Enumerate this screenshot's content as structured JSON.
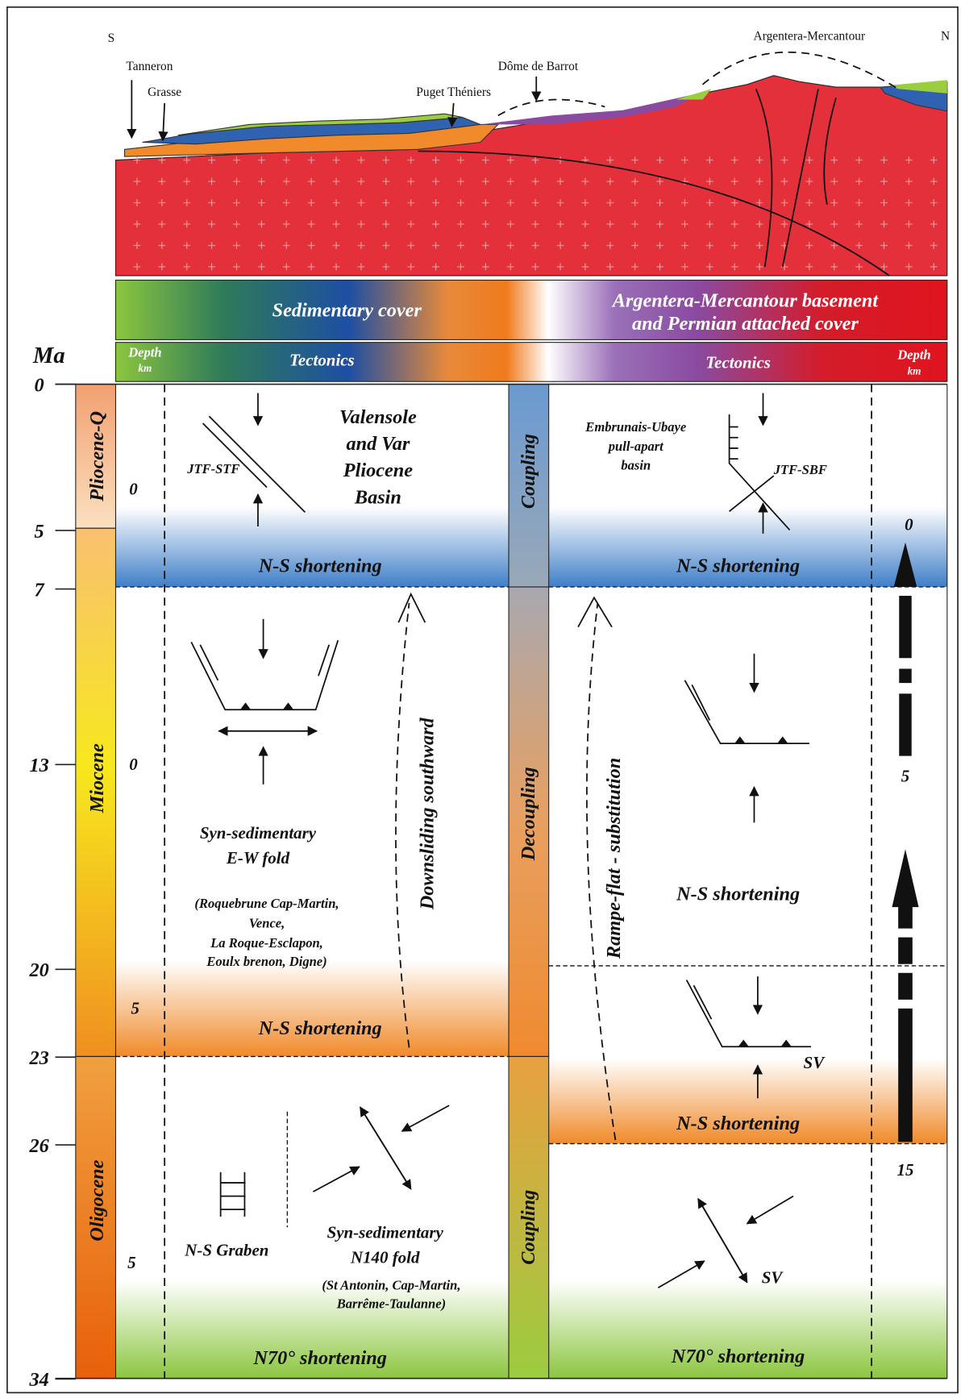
{
  "section": {
    "south": "S",
    "north": "N",
    "places": [
      "Tanneron",
      "Grasse",
      "Puget Théniers",
      "Dôme de Barrot",
      "Argentera-Mercantour"
    ]
  },
  "legend": {
    "sedimentary": "Sedimentary cover",
    "basement": [
      "Argentera-Mercantour basement",
      "and Permian attached cover"
    ],
    "depth_left": [
      "Depth",
      "km"
    ],
    "tectonics_left": "Tectonics",
    "tectonics_right": "Tectonics",
    "depth_right": [
      "Depth",
      "km"
    ]
  },
  "time_axis": {
    "label": "Ma",
    "ticks": [
      0,
      5,
      7,
      13,
      20,
      23,
      26,
      34
    ]
  },
  "epochs": [
    "Pliocene-Q",
    "Miocene",
    "Oligocene"
  ],
  "coupling": [
    "Coupling",
    "Decoupling",
    "Coupling"
  ],
  "left": {
    "depths": [
      0,
      0,
      5,
      5
    ],
    "fault": "JTF-STF",
    "basin": [
      "Valensole",
      "and Var",
      "Pliocene",
      "Basin"
    ],
    "shortening_1": "N-S shortening",
    "downsliding": "Downsliding southward",
    "fold_ew": [
      "Syn-sedimentary",
      "E-W fold"
    ],
    "fold_ew_sites": [
      "(Roquebrune Cap-Martin,",
      "Vence,",
      "La Roque-Esclapon,",
      "Eoulx brenon, Digne)"
    ],
    "shortening_2": "N-S shortening",
    "graben": "N-S Graben",
    "fold_n140": [
      "Syn-sedimentary",
      "N140 fold"
    ],
    "fold_n140_sites": [
      "(St Antonin, Cap-Martin,",
      "Barrême-Taulanne)"
    ],
    "shortening_3": "N70° shortening"
  },
  "right": {
    "depths": [
      0,
      5,
      15
    ],
    "basin": [
      "Embrunais-Ubaye",
      "pull-apart",
      "basin"
    ],
    "fault": "JTF-SBF",
    "shortening_1": "N-S shortening",
    "substitution": "Rampe-flat - substitution",
    "shortening_2": "N-S shortening",
    "sv_1": "SV",
    "shortening_3": "N-S shortening",
    "sv_2": "SV",
    "shortening_4": "N70° shortening"
  }
}
